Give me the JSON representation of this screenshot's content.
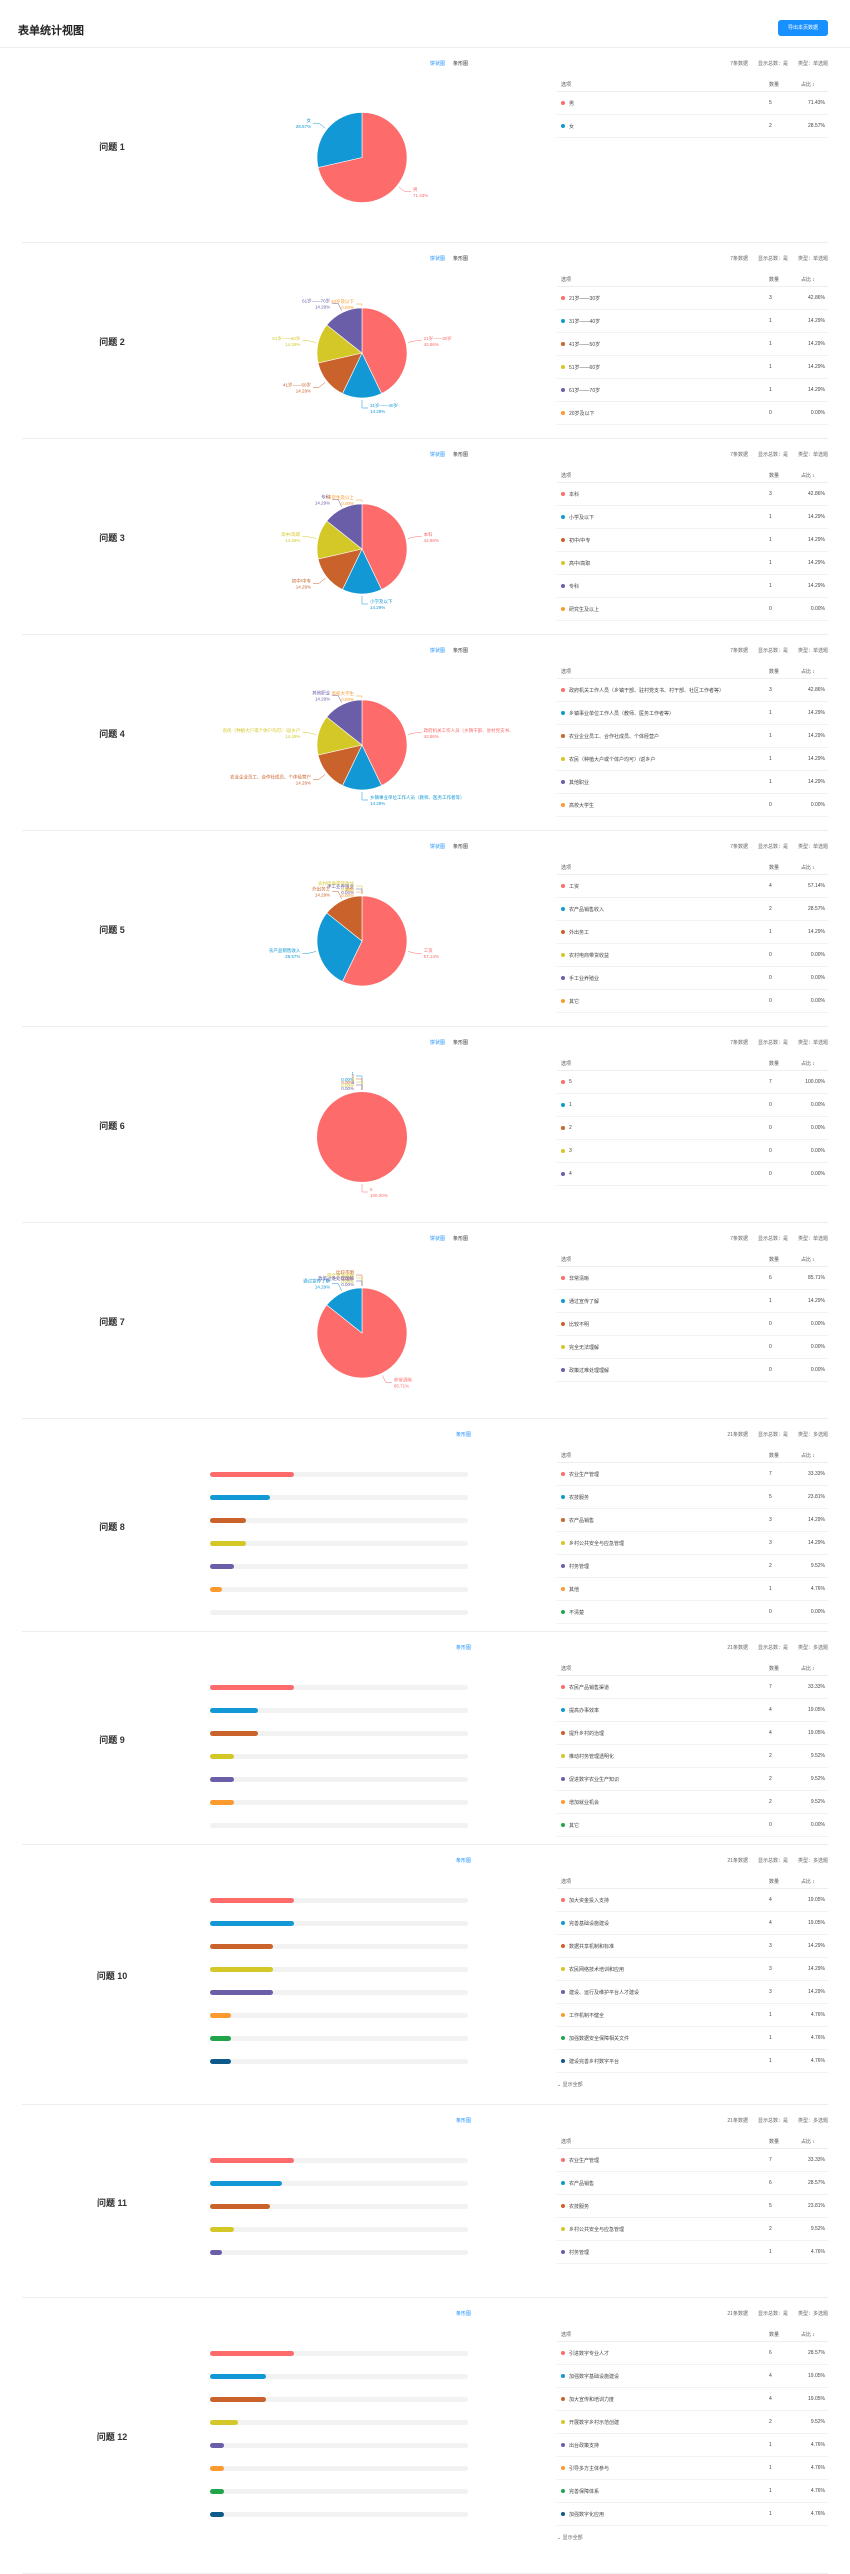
{
  "header": {
    "title": "表单统计视图",
    "export_label": "导出本页数据"
  },
  "palette": [
    "#fd6b6b",
    "#1298d4",
    "#c9622b",
    "#d4c828",
    "#6b5ea8",
    "#fb9a2e",
    "#22a54a",
    "#0e5a8a"
  ],
  "toggle": {
    "pie": "饼状图",
    "line": "条形图"
  },
  "table_header": {
    "option": "选项",
    "count": "数量",
    "pct": "占比 ↕"
  },
  "more_label": "⌄ 显示全部",
  "questions": [
    {
      "label": "问题 1",
      "type": "pie",
      "meta": [
        "7条数据",
        "显示总数：是",
        "类型：单选题"
      ],
      "rows": [
        {
          "name": "男",
          "count": 5,
          "pct": "71.43%"
        },
        {
          "name": "女",
          "count": 2,
          "pct": "28.57%"
        }
      ],
      "chart_data": {
        "type": "pie",
        "categories": [
          "男",
          "女"
        ],
        "values": [
          5,
          2
        ]
      }
    },
    {
      "label": "问题 2",
      "type": "pie",
      "meta": [
        "7条数据",
        "显示总数：是",
        "类型：单选题"
      ],
      "rows": [
        {
          "name": "21岁——30岁",
          "count": 3,
          "pct": "42.86%"
        },
        {
          "name": "31岁——40岁",
          "count": 1,
          "pct": "14.29%"
        },
        {
          "name": "41岁——50岁",
          "count": 1,
          "pct": "14.29%"
        },
        {
          "name": "51岁——60岁",
          "count": 1,
          "pct": "14.29%"
        },
        {
          "name": "61岁——70岁",
          "count": 1,
          "pct": "14.29%"
        },
        {
          "name": "20岁及以下",
          "count": 0,
          "pct": "0.00%"
        }
      ],
      "chart_data": {
        "type": "pie",
        "categories": [
          "21岁——30岁",
          "31岁——40岁",
          "41岁——50岁",
          "51岁——60岁",
          "61岁——70岁",
          "20岁及以下"
        ],
        "values": [
          3,
          1,
          1,
          1,
          1,
          0
        ]
      }
    },
    {
      "label": "问题 3",
      "type": "pie",
      "meta": [
        "7条数据",
        "显示总数：是",
        "类型：单选题"
      ],
      "rows": [
        {
          "name": "本科",
          "count": 3,
          "pct": "42.86%"
        },
        {
          "name": "小学及以下",
          "count": 1,
          "pct": "14.29%"
        },
        {
          "name": "初中/中专",
          "count": 1,
          "pct": "14.29%"
        },
        {
          "name": "高中/高职",
          "count": 1,
          "pct": "14.29%"
        },
        {
          "name": "专科",
          "count": 1,
          "pct": "14.29%"
        },
        {
          "name": "研究生及以上",
          "count": 0,
          "pct": "0.00%"
        }
      ],
      "chart_data": {
        "type": "pie",
        "categories": [
          "本科",
          "小学及以下",
          "初中/中专",
          "高中/高职",
          "专科",
          "研究生及以上"
        ],
        "values": [
          3,
          1,
          1,
          1,
          1,
          0
        ]
      }
    },
    {
      "label": "问题 4",
      "type": "pie",
      "meta": [
        "7条数据",
        "显示总数：是",
        "类型：单选题"
      ],
      "rows": [
        {
          "name": "政府机关工作人员（乡镇干部、驻村党支书、村干部、社区工作者等）",
          "count": 3,
          "pct": "42.86%"
        },
        {
          "name": "乡镇事业单位工作人员（教师、医务工作者等）",
          "count": 1,
          "pct": "14.29%"
        },
        {
          "name": "农业企业员工、合作社成员、个体经营户",
          "count": 1,
          "pct": "14.29%"
        },
        {
          "name": "农民（种植大户或个体户均可）/返乡户",
          "count": 1,
          "pct": "14.29%"
        },
        {
          "name": "其他职业",
          "count": 1,
          "pct": "14.29%"
        },
        {
          "name": "高校大学生",
          "count": 0,
          "pct": "0.00%"
        }
      ],
      "chart_data": {
        "type": "pie",
        "categories": [
          "政府机关工作人员（乡镇干部、驻村党支书、村干部、社区工作者等）",
          "乡镇事业单位工作人员（教师、医务工作者等）",
          "农业企业员工、合作社成员、个体经营户",
          "农民（种植大户或个体户均可）/返乡户",
          "其他职业",
          "高校大学生"
        ],
        "values": [
          3,
          1,
          1,
          1,
          1,
          0
        ]
      }
    },
    {
      "label": "问题 5",
      "type": "pie",
      "meta": [
        "7条数据",
        "显示总数：是",
        "类型：单选题"
      ],
      "rows": [
        {
          "name": "工资",
          "count": 4,
          "pct": "57.14%"
        },
        {
          "name": "农产品销售收入",
          "count": 2,
          "pct": "28.57%"
        },
        {
          "name": "外出务工",
          "count": 1,
          "pct": "14.29%"
        },
        {
          "name": "农村电商带货收益",
          "count": 0,
          "pct": "0.00%"
        },
        {
          "name": "手工业养殖业",
          "count": 0,
          "pct": "0.00%"
        },
        {
          "name": "其它",
          "count": 0,
          "pct": "0.00%"
        }
      ],
      "chart_data": {
        "type": "pie",
        "categories": [
          "工资",
          "农产品销售收入",
          "外出务工",
          "农村电商带货收益",
          "手工业养殖业",
          "其它"
        ],
        "values": [
          4,
          2,
          1,
          0,
          0,
          0
        ]
      }
    },
    {
      "label": "问题 6",
      "type": "pie",
      "meta": [
        "7条数据",
        "显示总数：是",
        "类型：单选题"
      ],
      "rows": [
        {
          "name": "5",
          "count": 7,
          "pct": "100.00%"
        },
        {
          "name": "1",
          "count": 0,
          "pct": "0.00%"
        },
        {
          "name": "2",
          "count": 0,
          "pct": "0.00%"
        },
        {
          "name": "3",
          "count": 0,
          "pct": "0.00%"
        },
        {
          "name": "4",
          "count": 0,
          "pct": "0.00%"
        }
      ],
      "chart_data": {
        "type": "pie",
        "categories": [
          "5",
          "1",
          "2",
          "3",
          "4"
        ],
        "values": [
          7,
          0,
          0,
          0,
          0
        ]
      }
    },
    {
      "label": "问题 7",
      "type": "pie",
      "meta": [
        "7条数据",
        "显示总数：是",
        "类型：单选题"
      ],
      "rows": [
        {
          "name": "非常清晰",
          "count": 6,
          "pct": "85.71%"
        },
        {
          "name": "通过宣传了解",
          "count": 1,
          "pct": "14.29%"
        },
        {
          "name": "比较不明",
          "count": 0,
          "pct": "0.00%"
        },
        {
          "name": "完全无法理解",
          "count": 0,
          "pct": "0.00%"
        },
        {
          "name": "政策过难处理理解",
          "count": 0,
          "pct": "0.00%"
        }
      ],
      "chart_data": {
        "type": "pie",
        "categories": [
          "非常清晰",
          "通过宣传了解",
          "比较不明",
          "完全无法理解",
          "政策过难处理理解"
        ],
        "values": [
          6,
          1,
          0,
          0,
          0
        ]
      }
    },
    {
      "label": "问题 8",
      "type": "bar",
      "meta": [
        "21条数据",
        "显示总数：是",
        "类型：多选题"
      ],
      "rows": [
        {
          "name": "农业生产管理",
          "count": 7,
          "pct": "33.33%"
        },
        {
          "name": "农技服务",
          "count": 5,
          "pct": "23.81%"
        },
        {
          "name": "农产品销售",
          "count": 3,
          "pct": "14.29%"
        },
        {
          "name": "乡村公共安全与应急管理",
          "count": 3,
          "pct": "14.29%"
        },
        {
          "name": "村务管理",
          "count": 2,
          "pct": "9.52%"
        },
        {
          "name": "其他",
          "count": 1,
          "pct": "4.76%"
        },
        {
          "name": "不清楚",
          "count": 0,
          "pct": "0.00%"
        }
      ],
      "chart_data": {
        "type": "bar",
        "categories": [
          "农业生产管理",
          "农技服务",
          "农产品销售",
          "乡村公共安全与应急管理",
          "村务管理",
          "其他",
          "不清楚"
        ],
        "values": [
          7,
          5,
          3,
          3,
          2,
          1,
          0
        ]
      }
    },
    {
      "label": "问题 9",
      "type": "bar",
      "meta": [
        "21条数据",
        "显示总数：是",
        "类型：多选题"
      ],
      "rows": [
        {
          "name": "农民产品销售渠道",
          "count": 7,
          "pct": "33.33%"
        },
        {
          "name": "提高办事效率",
          "count": 4,
          "pct": "19.05%"
        },
        {
          "name": "提升乡村的治理",
          "count": 4,
          "pct": "19.05%"
        },
        {
          "name": "推动村务管理透明化",
          "count": 2,
          "pct": "9.52%"
        },
        {
          "name": "促进数字农业生产知识",
          "count": 2,
          "pct": "9.52%"
        },
        {
          "name": "增加就业机会",
          "count": 2,
          "pct": "9.52%"
        },
        {
          "name": "其它",
          "count": 0,
          "pct": "0.00%"
        }
      ],
      "chart_data": {
        "type": "bar",
        "categories": [
          "农民产品销售渠道",
          "提高办事效率",
          "提升乡村的治理",
          "推动村务管理透明化",
          "促进数字农业生产知识",
          "增加就业机会",
          "其它"
        ],
        "values": [
          7,
          4,
          4,
          2,
          2,
          2,
          0
        ]
      }
    },
    {
      "label": "问题 10",
      "type": "bar",
      "meta": [
        "21条数据",
        "显示总数：是",
        "类型：多选题"
      ],
      "rows": [
        {
          "name": "加大资金投入支持",
          "count": 4,
          "pct": "19.05%"
        },
        {
          "name": "完善基础设施建设",
          "count": 4,
          "pct": "19.05%"
        },
        {
          "name": "数据共享机制和标准",
          "count": 3,
          "pct": "14.29%"
        },
        {
          "name": "农民网络技术培训和应用",
          "count": 3,
          "pct": "14.29%"
        },
        {
          "name": "建设、运行及维护平台人才建设",
          "count": 3,
          "pct": "14.29%"
        },
        {
          "name": "工作机制不健全",
          "count": 1,
          "pct": "4.76%"
        },
        {
          "name": "加强数据安全保障相关文件",
          "count": 1,
          "pct": "4.76%"
        },
        {
          "name": "建设完善乡村数字平台",
          "count": 1,
          "pct": "4.76%"
        }
      ],
      "chart_data": {
        "type": "bar",
        "categories": [
          "加大资金投入支持",
          "完善基础设施建设",
          "数据共享机制和标准",
          "农民网络技术培训和应用",
          "建设、运行及维护平台人才建设",
          "工作机制不健全",
          "加强数据安全保障相关文件",
          "建设完善乡村数字平台"
        ],
        "values": [
          4,
          4,
          3,
          3,
          3,
          1,
          1,
          1
        ]
      }
    },
    {
      "label": "问题 11",
      "type": "bar",
      "meta": [
        "21条数据",
        "显示总数：是",
        "类型：多选题"
      ],
      "rows": [
        {
          "name": "农业生产管理",
          "count": 7,
          "pct": "33.33%"
        },
        {
          "name": "农产品销售",
          "count": 6,
          "pct": "28.57%"
        },
        {
          "name": "农技服务",
          "count": 5,
          "pct": "23.81%"
        },
        {
          "name": "乡村公共安全与应急管理",
          "count": 2,
          "pct": "9.52%"
        },
        {
          "name": "村务管理",
          "count": 1,
          "pct": "4.76%"
        }
      ],
      "chart_data": {
        "type": "bar",
        "categories": [
          "农业生产管理",
          "农产品销售",
          "农技服务",
          "乡村公共安全与应急管理",
          "村务管理"
        ],
        "values": [
          7,
          6,
          5,
          2,
          1
        ]
      }
    },
    {
      "label": "问题 12",
      "type": "bar",
      "meta": [
        "21条数据",
        "显示总数：是",
        "类型：多选题"
      ],
      "rows": [
        {
          "name": "引进数字专业人才",
          "count": 6,
          "pct": "28.57%"
        },
        {
          "name": "加强数字基础设施建设",
          "count": 4,
          "pct": "19.05%"
        },
        {
          "name": "加大宣传和培训力度",
          "count": 4,
          "pct": "19.05%"
        },
        {
          "name": "开展数字乡村示范创建",
          "count": 2,
          "pct": "9.52%"
        },
        {
          "name": "出台政策支持",
          "count": 1,
          "pct": "4.76%"
        },
        {
          "name": "引导多方主体参与",
          "count": 1,
          "pct": "4.76%"
        },
        {
          "name": "完善保障体系",
          "count": 1,
          "pct": "4.76%"
        },
        {
          "name": "加强数字化应用",
          "count": 1,
          "pct": "4.76%"
        }
      ],
      "chart_data": {
        "type": "bar",
        "categories": [
          "引进数字专业人才",
          "加强数字基础设施建设",
          "加大宣传和培训力度",
          "开展数字乡村示范创建",
          "出台政策支持",
          "引导多方主体参与",
          "完善保障体系",
          "加强数字化应用"
        ],
        "values": [
          6,
          4,
          4,
          2,
          1,
          1,
          1,
          1
        ]
      }
    }
  ]
}
